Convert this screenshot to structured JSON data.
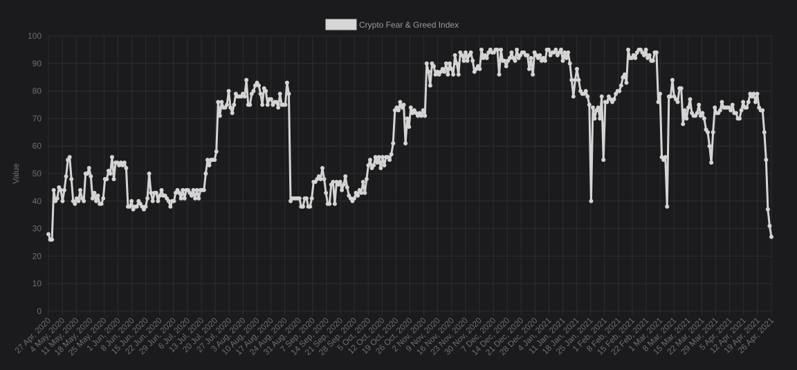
{
  "legend": {
    "label": "Crypto Fear & Greed Index",
    "swatch_fill": "#d6d6d6",
    "swatch_border": "#cfcfcf"
  },
  "colors": {
    "background": "#1b1b1d",
    "grid": "#2e2e31",
    "axis_text": "#6f6f73",
    "line": "#d4d4d4",
    "point": "#d4d4d4"
  },
  "chart_data": {
    "type": "line",
    "title": "",
    "xlabel": "",
    "ylabel": "Value",
    "ylim": [
      0,
      100
    ],
    "yticks": [
      0,
      10,
      20,
      30,
      40,
      50,
      60,
      70,
      80,
      90,
      100
    ],
    "grid": true,
    "legend_position": "top",
    "start_date": "2020-04-27",
    "end_date": "2021-04-28",
    "xtick_labels": [
      "27 Apr, 2020",
      "4 May, 2020",
      "11 May, 2020",
      "18 May, 2020",
      "25 May, 2020",
      "1 Jun, 2020",
      "8 Jun, 2020",
      "15 Jun, 2020",
      "22 Jun, 2020",
      "29 Jun, 2020",
      "6 Jul, 2020",
      "13 Jul, 2020",
      "20 Jul, 2020",
      "27 Jul, 2020",
      "3 Aug, 2020",
      "10 Aug, 2020",
      "17 Aug, 2020",
      "24 Aug, 2020",
      "31 Aug, 2020",
      "7 Sep, 2020",
      "14 Sep, 2020",
      "21 Sep, 2020",
      "28 Sep, 2020",
      "5 Oct, 2020",
      "12 Oct, 2020",
      "19 Oct, 2020",
      "26 Oct, 2020",
      "2 Nov, 2020",
      "9 Nov, 2020",
      "16 Nov, 2020",
      "23 Nov, 2020",
      "30 Nov, 2020",
      "7 Dec, 2020",
      "14 Dec, 2020",
      "21 Dec, 2020",
      "28 Dec, 2020",
      "4 Jan, 2021",
      "11 Jan, 2021",
      "18 Jan, 2021",
      "25 Jan, 2021",
      "1 Feb, 2021",
      "8 Feb, 2021",
      "15 Feb, 2021",
      "22 Feb, 2021",
      "1 Mar, 2021",
      "8 Mar, 2021",
      "15 Mar, 2021",
      "22 Mar, 2021",
      "29 Mar, 2021",
      "5 Apr, 2021",
      "12 Apr, 2021",
      "19 Apr, 2021",
      "26 Apr, 2021"
    ],
    "series": [
      {
        "name": "Crypto Fear & Greed Index",
        "values": [
          28,
          26,
          26,
          44,
          40,
          41,
          45,
          44,
          40,
          44,
          49,
          55,
          56,
          48,
          40,
          39,
          41,
          40,
          44,
          41,
          40,
          50,
          50,
          52,
          49,
          41,
          43,
          40,
          42,
          39,
          39,
          41,
          48,
          48,
          51,
          50,
          56,
          48,
          54,
          54,
          53,
          54,
          53,
          54,
          52,
          38,
          38,
          40,
          37,
          38,
          38,
          40,
          39,
          38,
          37,
          38,
          41,
          50,
          43,
          40,
          43,
          43,
          40,
          42,
          44,
          42,
          42,
          41,
          40,
          38,
          40,
          40,
          43,
          44,
          43,
          41,
          44,
          41,
          44,
          44,
          43,
          42,
          44,
          41,
          44,
          41,
          44,
          44,
          44,
          50,
          55,
          53,
          55,
          55,
          55,
          58,
          76,
          71,
          76,
          74,
          74,
          75,
          80,
          74,
          72,
          75,
          79,
          78,
          78,
          78,
          79,
          78,
          84,
          75,
          75,
          79,
          80,
          82,
          83,
          82,
          79,
          75,
          81,
          80,
          75,
          77,
          77,
          75,
          76,
          76,
          74,
          79,
          75,
          75,
          75,
          83,
          79,
          40,
          41,
          41,
          41,
          41,
          41,
          38,
          38,
          41,
          41,
          38,
          38,
          41,
          47,
          47,
          48,
          49,
          48,
          52,
          48,
          43,
          39,
          39,
          46,
          47,
          39,
          47,
          46,
          47,
          44,
          46,
          49,
          45,
          42,
          41,
          40,
          41,
          43,
          42,
          44,
          43,
          47,
          43,
          48,
          53,
          55,
          52,
          53,
          56,
          54,
          56,
          52,
          56,
          53,
          56,
          56,
          55,
          57,
          61,
          73,
          74,
          73,
          76,
          74,
          75,
          61,
          70,
          67,
          74,
          72,
          73,
          72,
          71,
          72,
          71,
          73,
          71,
          90,
          87,
          82,
          90,
          89,
          86,
          87,
          86,
          87,
          88,
          87,
          90,
          86,
          90,
          88,
          86,
          93,
          90,
          86,
          94,
          93,
          91,
          94,
          91,
          93,
          94,
          91,
          87,
          88,
          89,
          88,
          95,
          92,
          93,
          92,
          94,
          95,
          94,
          94,
          95,
          95,
          86,
          95,
          91,
          91,
          89,
          91,
          92,
          94,
          92,
          91,
          95,
          92,
          93,
          94,
          94,
          93,
          93,
          88,
          92,
          86,
          94,
          93,
          92,
          93,
          91,
          92,
          91,
          95,
          95,
          93,
          94,
          94,
          95,
          93,
          94,
          95,
          91,
          94,
          92,
          94,
          90,
          84,
          78,
          84,
          88,
          84,
          80,
          79,
          79,
          80,
          78,
          75,
          40,
          74,
          70,
          73,
          74,
          70,
          78,
          55,
          76,
          76,
          78,
          77,
          76,
          77,
          79,
          80,
          80,
          82,
          85,
          86,
          83,
          95,
          92,
          92,
          93,
          92,
          94,
          95,
          95,
          94,
          93,
          95,
          92,
          93,
          91,
          91,
          94,
          94,
          76,
          79,
          56,
          55,
          56,
          38,
          78,
          78,
          84,
          78,
          77,
          76,
          81,
          81,
          68,
          73,
          70,
          74,
          77,
          72,
          71,
          71,
          72,
          75,
          71,
          72,
          70,
          66,
          65,
          60,
          54,
          65,
          74,
          72,
          72,
          73,
          76,
          74,
          74,
          74,
          74,
          73,
          75,
          72,
          72,
          70,
          70,
          73,
          76,
          74,
          74,
          76,
          79,
          78,
          79,
          76,
          79,
          74,
          73,
          73,
          65,
          55,
          37,
          31,
          27
        ]
      }
    ]
  }
}
